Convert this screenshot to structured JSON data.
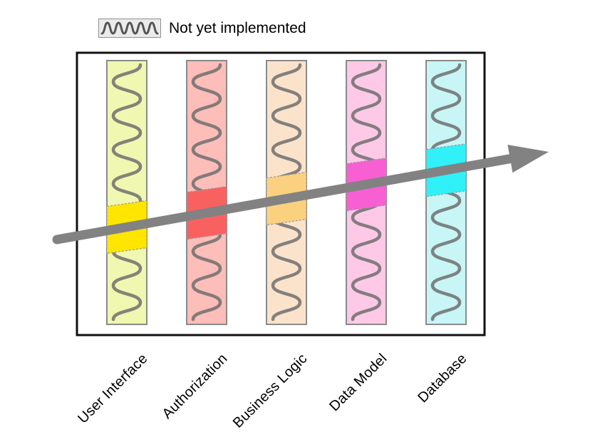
{
  "legend": {
    "label": "Not yet implemented",
    "swatch_fill": "#ebebeb",
    "swatch_border": "#8f8f8f",
    "wave_color": "#555555"
  },
  "diagram": {
    "frame_border": "#111111",
    "column_border": "#8a8a8a",
    "wave_color": "#6f6f6f",
    "highlight_border": "#999999",
    "arrow_color": "#828282",
    "layers": [
      {
        "label": "User Interface",
        "fill": "#f0f7b0",
        "highlight": "#ffe500"
      },
      {
        "label": "Authorization",
        "fill": "#fdbdb9",
        "highlight": "#f96161"
      },
      {
        "label": "Business Logic",
        "fill": "#fbe3cb",
        "highlight": "#fbd180"
      },
      {
        "label": "Data Model",
        "fill": "#fdc9e6",
        "highlight": "#f75fd3"
      },
      {
        "label": "Database",
        "fill": "#c8f5f6",
        "highlight": "#30f0f8"
      }
    ]
  }
}
